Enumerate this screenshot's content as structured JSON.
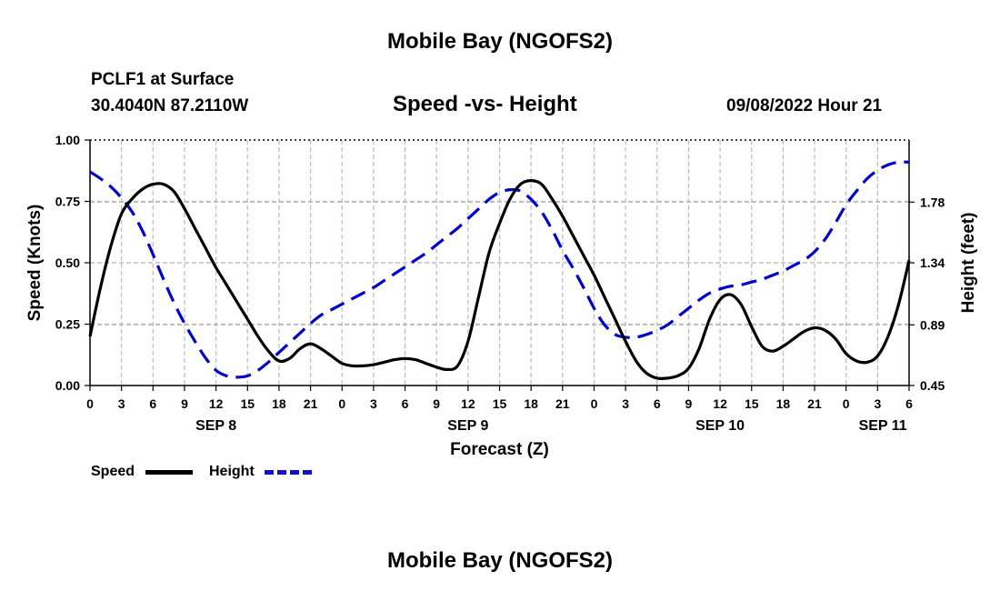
{
  "header": {
    "title": "Mobile Bay (NGOFS2)",
    "station": "PCLF1 at Surface",
    "coords": "30.4040N  87.2110W",
    "datetime": "09/08/2022 Hour 21",
    "bottom_title": "Mobile Bay (NGOFS2)"
  },
  "chart_data": {
    "type": "line",
    "title": "Speed -vs- Height",
    "xlabel": "Forecast (Z)",
    "ylabel": "Speed (Knots)",
    "y2label": "Height (feet)",
    "x_unit": "hours since SEP 8 00Z",
    "xlim": [
      0,
      78
    ],
    "ylim": [
      0,
      1
    ],
    "y2lim": [
      0.45,
      2.23
    ],
    "grid": true,
    "x_ticks": [
      0,
      3,
      6,
      9,
      12,
      15,
      18,
      21,
      24,
      27,
      30,
      33,
      36,
      39,
      42,
      45,
      48,
      51,
      54,
      57,
      60,
      63,
      66,
      69,
      72,
      75,
      78
    ],
    "x_tick_labels": [
      "0",
      "3",
      "6",
      "9",
      "12",
      "15",
      "18",
      "21",
      "0",
      "3",
      "6",
      "9",
      "12",
      "15",
      "18",
      "21",
      "0",
      "3",
      "6",
      "9",
      "12",
      "15",
      "18",
      "21",
      "0",
      "3",
      "6"
    ],
    "date_labels": [
      {
        "label": "SEP 8",
        "x": 12
      },
      {
        "label": "SEP 9",
        "x": 36
      },
      {
        "label": "SEP 10",
        "x": 60
      },
      {
        "label": "SEP 11",
        "x": 75.5
      }
    ],
    "y_ticks": [
      0,
      0.25,
      0.5,
      0.75,
      1.0
    ],
    "y_tick_labels": [
      "0.00",
      "0.25",
      "0.50",
      "0.75",
      "1.00"
    ],
    "y2_ticks": [
      0.45,
      0.89,
      1.34,
      1.78
    ],
    "y2_tick_labels": [
      "0.45",
      "0.89",
      "1.34",
      "1.78"
    ],
    "legend_position": "bottom-left",
    "series": [
      {
        "name": "Speed",
        "axis": "left",
        "color": "#000000",
        "style": "solid",
        "x": [
          0,
          1,
          2,
          3,
          4,
          5,
          6,
          7,
          8,
          9,
          10,
          11,
          12,
          13,
          14,
          15,
          16,
          17,
          18,
          19,
          20,
          21,
          22,
          23,
          24,
          25,
          26,
          27,
          28,
          29,
          30,
          31,
          32,
          33,
          34,
          35,
          36,
          37,
          38,
          39,
          40,
          41,
          42,
          43,
          44,
          45,
          46,
          47,
          48,
          49,
          50,
          51,
          52,
          53,
          54,
          55,
          56,
          57,
          58,
          59,
          60,
          61,
          62,
          63,
          64,
          65,
          66,
          67,
          68,
          69,
          70,
          71,
          72,
          73,
          74,
          75,
          76,
          77,
          78
        ],
        "values": [
          0.2,
          0.4,
          0.57,
          0.7,
          0.76,
          0.8,
          0.82,
          0.82,
          0.79,
          0.72,
          0.64,
          0.56,
          0.48,
          0.41,
          0.34,
          0.27,
          0.2,
          0.14,
          0.1,
          0.11,
          0.15,
          0.17,
          0.15,
          0.12,
          0.09,
          0.08,
          0.08,
          0.085,
          0.095,
          0.105,
          0.11,
          0.105,
          0.09,
          0.075,
          0.065,
          0.08,
          0.18,
          0.36,
          0.54,
          0.66,
          0.76,
          0.82,
          0.835,
          0.82,
          0.76,
          0.69,
          0.61,
          0.53,
          0.45,
          0.36,
          0.27,
          0.18,
          0.1,
          0.05,
          0.03,
          0.03,
          0.04,
          0.07,
          0.15,
          0.27,
          0.35,
          0.37,
          0.33,
          0.24,
          0.16,
          0.14,
          0.16,
          0.19,
          0.22,
          0.235,
          0.225,
          0.19,
          0.13,
          0.1,
          0.095,
          0.12,
          0.2,
          0.33,
          0.51
        ]
      },
      {
        "name": "Height",
        "axis": "right",
        "color": "#0000cc",
        "style": "dashed",
        "x": [
          0,
          1,
          2,
          3,
          4,
          5,
          6,
          7,
          8,
          9,
          10,
          11,
          12,
          13,
          14,
          15,
          16,
          17,
          18,
          19,
          20,
          21,
          22,
          23,
          24,
          25,
          26,
          27,
          28,
          29,
          30,
          31,
          32,
          33,
          34,
          35,
          36,
          37,
          38,
          39,
          40,
          41,
          42,
          43,
          44,
          45,
          46,
          47,
          48,
          49,
          50,
          51,
          52,
          53,
          54,
          55,
          56,
          57,
          58,
          59,
          60,
          61,
          62,
          63,
          64,
          65,
          66,
          67,
          68,
          69,
          70,
          71,
          72,
          73,
          74,
          75,
          76,
          77,
          78
        ],
        "values": [
          2.0,
          1.95,
          1.89,
          1.81,
          1.71,
          1.57,
          1.4,
          1.22,
          1.05,
          0.9,
          0.77,
          0.65,
          0.56,
          0.52,
          0.51,
          0.52,
          0.56,
          0.62,
          0.69,
          0.76,
          0.83,
          0.9,
          0.96,
          1.0,
          1.04,
          1.08,
          1.12,
          1.16,
          1.21,
          1.26,
          1.31,
          1.36,
          1.41,
          1.47,
          1.53,
          1.59,
          1.66,
          1.73,
          1.8,
          1.85,
          1.87,
          1.86,
          1.8,
          1.71,
          1.58,
          1.43,
          1.3,
          1.16,
          1.01,
          0.89,
          0.82,
          0.8,
          0.8,
          0.82,
          0.85,
          0.89,
          0.95,
          1.01,
          1.07,
          1.12,
          1.15,
          1.17,
          1.18,
          1.2,
          1.22,
          1.25,
          1.28,
          1.32,
          1.36,
          1.42,
          1.51,
          1.63,
          1.76,
          1.86,
          1.95,
          2.01,
          2.05,
          2.07,
          2.07
        ]
      }
    ]
  }
}
